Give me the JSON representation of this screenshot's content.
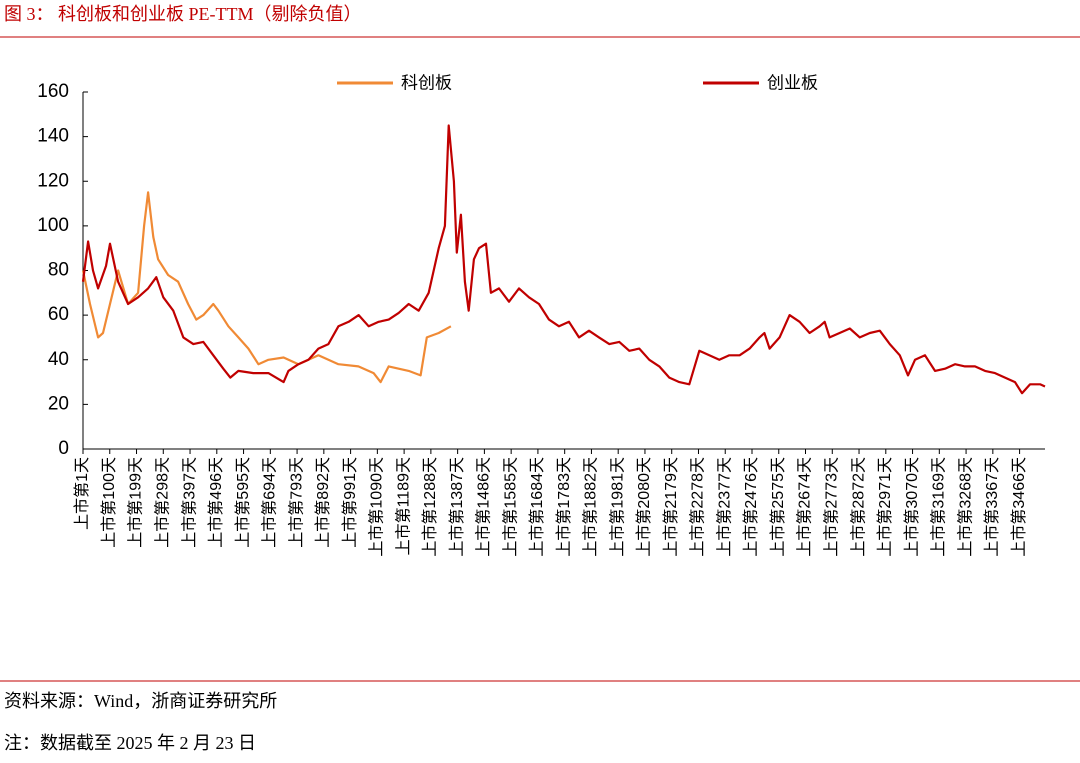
{
  "chart_data": {
    "type": "line",
    "title": "图 3：  科创板和创业板 PE-TTM（剔除负值）",
    "source": "资料来源：Wind，浙商证券研究所",
    "note": "注：数据截至 2025 年 2 月 23 日",
    "legend": "top",
    "xlim": [
      1,
      3560
    ],
    "xticks": [
      {
        "value": 1,
        "label": "上市第1天"
      },
      {
        "value": 100,
        "label": "上市第100天"
      },
      {
        "value": 199,
        "label": "上市第199天"
      },
      {
        "value": 298,
        "label": "上市第298天"
      },
      {
        "value": 397,
        "label": "上市第397天"
      },
      {
        "value": 496,
        "label": "上市第496天"
      },
      {
        "value": 595,
        "label": "上市第595天"
      },
      {
        "value": 694,
        "label": "上市第694天"
      },
      {
        "value": 793,
        "label": "上市第793天"
      },
      {
        "value": 892,
        "label": "上市第892天"
      },
      {
        "value": 991,
        "label": "上市第991天"
      },
      {
        "value": 1090,
        "label": "上市第1090天"
      },
      {
        "value": 1189,
        "label": "上市第1189天"
      },
      {
        "value": 1288,
        "label": "上市第1288天"
      },
      {
        "value": 1387,
        "label": "上市第1387天"
      },
      {
        "value": 1486,
        "label": "上市第1486天"
      },
      {
        "value": 1585,
        "label": "上市第1585天"
      },
      {
        "value": 1684,
        "label": "上市第1684天"
      },
      {
        "value": 1783,
        "label": "上市第1783天"
      },
      {
        "value": 1882,
        "label": "上市第1882天"
      },
      {
        "value": 1981,
        "label": "上市第1981天"
      },
      {
        "value": 2080,
        "label": "上市第2080天"
      },
      {
        "value": 2179,
        "label": "上市第2179天"
      },
      {
        "value": 2278,
        "label": "上市第2278天"
      },
      {
        "value": 2377,
        "label": "上市第2377天"
      },
      {
        "value": 2476,
        "label": "上市第2476天"
      },
      {
        "value": 2575,
        "label": "上市第2575天"
      },
      {
        "value": 2674,
        "label": "上市第2674天"
      },
      {
        "value": 2773,
        "label": "上市第2773天"
      },
      {
        "value": 2872,
        "label": "上市第2872天"
      },
      {
        "value": 2971,
        "label": "上市第2971天"
      },
      {
        "value": 3070,
        "label": "上市第3070天"
      },
      {
        "value": 3169,
        "label": "上市第3169天"
      },
      {
        "value": 3268,
        "label": "上市第3268天"
      },
      {
        "value": 3367,
        "label": "上市第3367天"
      },
      {
        "value": 3466,
        "label": "上市第3466天"
      }
    ],
    "ylim": [
      0,
      160
    ],
    "yticks": [
      0,
      20,
      40,
      60,
      80,
      100,
      120,
      140,
      160
    ],
    "series": [
      {
        "name": "科创板",
        "color": "#f08a35",
        "x": [
          1,
          27,
          57,
          75,
          101,
          131,
          168,
          205,
          227,
          242,
          261,
          279,
          316,
          353,
          390,
          420,
          446,
          483,
          502,
          539,
          576,
          613,
          650,
          687,
          743,
          798,
          872,
          946,
          1020,
          1076,
          1102,
          1132,
          1206,
          1250,
          1273,
          1317,
          1362
        ],
        "values": [
          80,
          65,
          50,
          52,
          65,
          80,
          65,
          70,
          100,
          115,
          95,
          85,
          78,
          75,
          65,
          58,
          60,
          65,
          62,
          55,
          50,
          45,
          38,
          40,
          41,
          38,
          42,
          38,
          37,
          34,
          30,
          37,
          35,
          33,
          50,
          52,
          55
        ]
      },
      {
        "name": "创业板",
        "color": "#c00000",
        "x": [
          1,
          20,
          38,
          57,
          86,
          101,
          131,
          168,
          205,
          242,
          272,
          298,
          335,
          372,
          409,
          446,
          483,
          520,
          546,
          576,
          631,
          687,
          743,
          761,
          798,
          835,
          872,
          909,
          946,
          984,
          1021,
          1058,
          1095,
          1132,
          1169,
          1206,
          1243,
          1280,
          1317,
          1340,
          1354,
          1373,
          1384,
          1399,
          1414,
          1428,
          1447,
          1466,
          1492,
          1510,
          1540,
          1577,
          1614,
          1651,
          1688,
          1725,
          1762,
          1799,
          1836,
          1873,
          1910,
          1948,
          1985,
          2022,
          2059,
          2096,
          2133,
          2170,
          2207,
          2244,
          2281,
          2318,
          2355,
          2392,
          2430,
          2467,
          2504,
          2522,
          2541,
          2578,
          2615,
          2652,
          2689,
          2726,
          2745,
          2763,
          2800,
          2838,
          2875,
          2912,
          2949,
          2986,
          3023,
          3053,
          3079,
          3116,
          3153,
          3190,
          3227,
          3264,
          3301,
          3338,
          3375,
          3412,
          3449,
          3475,
          3505,
          3542,
          3560
        ],
        "values": [
          75,
          93,
          80,
          72,
          82,
          92,
          75,
          65,
          68,
          72,
          77,
          68,
          62,
          50,
          47,
          48,
          42,
          36,
          32,
          35,
          34,
          34,
          30,
          35,
          38,
          40,
          45,
          47,
          55,
          57,
          60,
          55,
          57,
          58,
          61,
          65,
          62,
          70,
          90,
          100,
          145,
          120,
          88,
          105,
          75,
          62,
          85,
          90,
          92,
          70,
          72,
          66,
          72,
          68,
          65,
          58,
          55,
          57,
          50,
          53,
          50,
          47,
          48,
          44,
          45,
          40,
          37,
          32,
          30,
          29,
          44,
          42,
          40,
          42,
          42,
          45,
          50,
          52,
          45,
          50,
          60,
          57,
          52,
          55,
          57,
          50,
          52,
          54,
          50,
          52,
          53,
          47,
          42,
          33,
          40,
          42,
          35,
          36,
          38,
          37,
          37,
          35,
          34,
          32,
          30,
          25,
          29,
          29,
          28
        ]
      }
    ]
  }
}
